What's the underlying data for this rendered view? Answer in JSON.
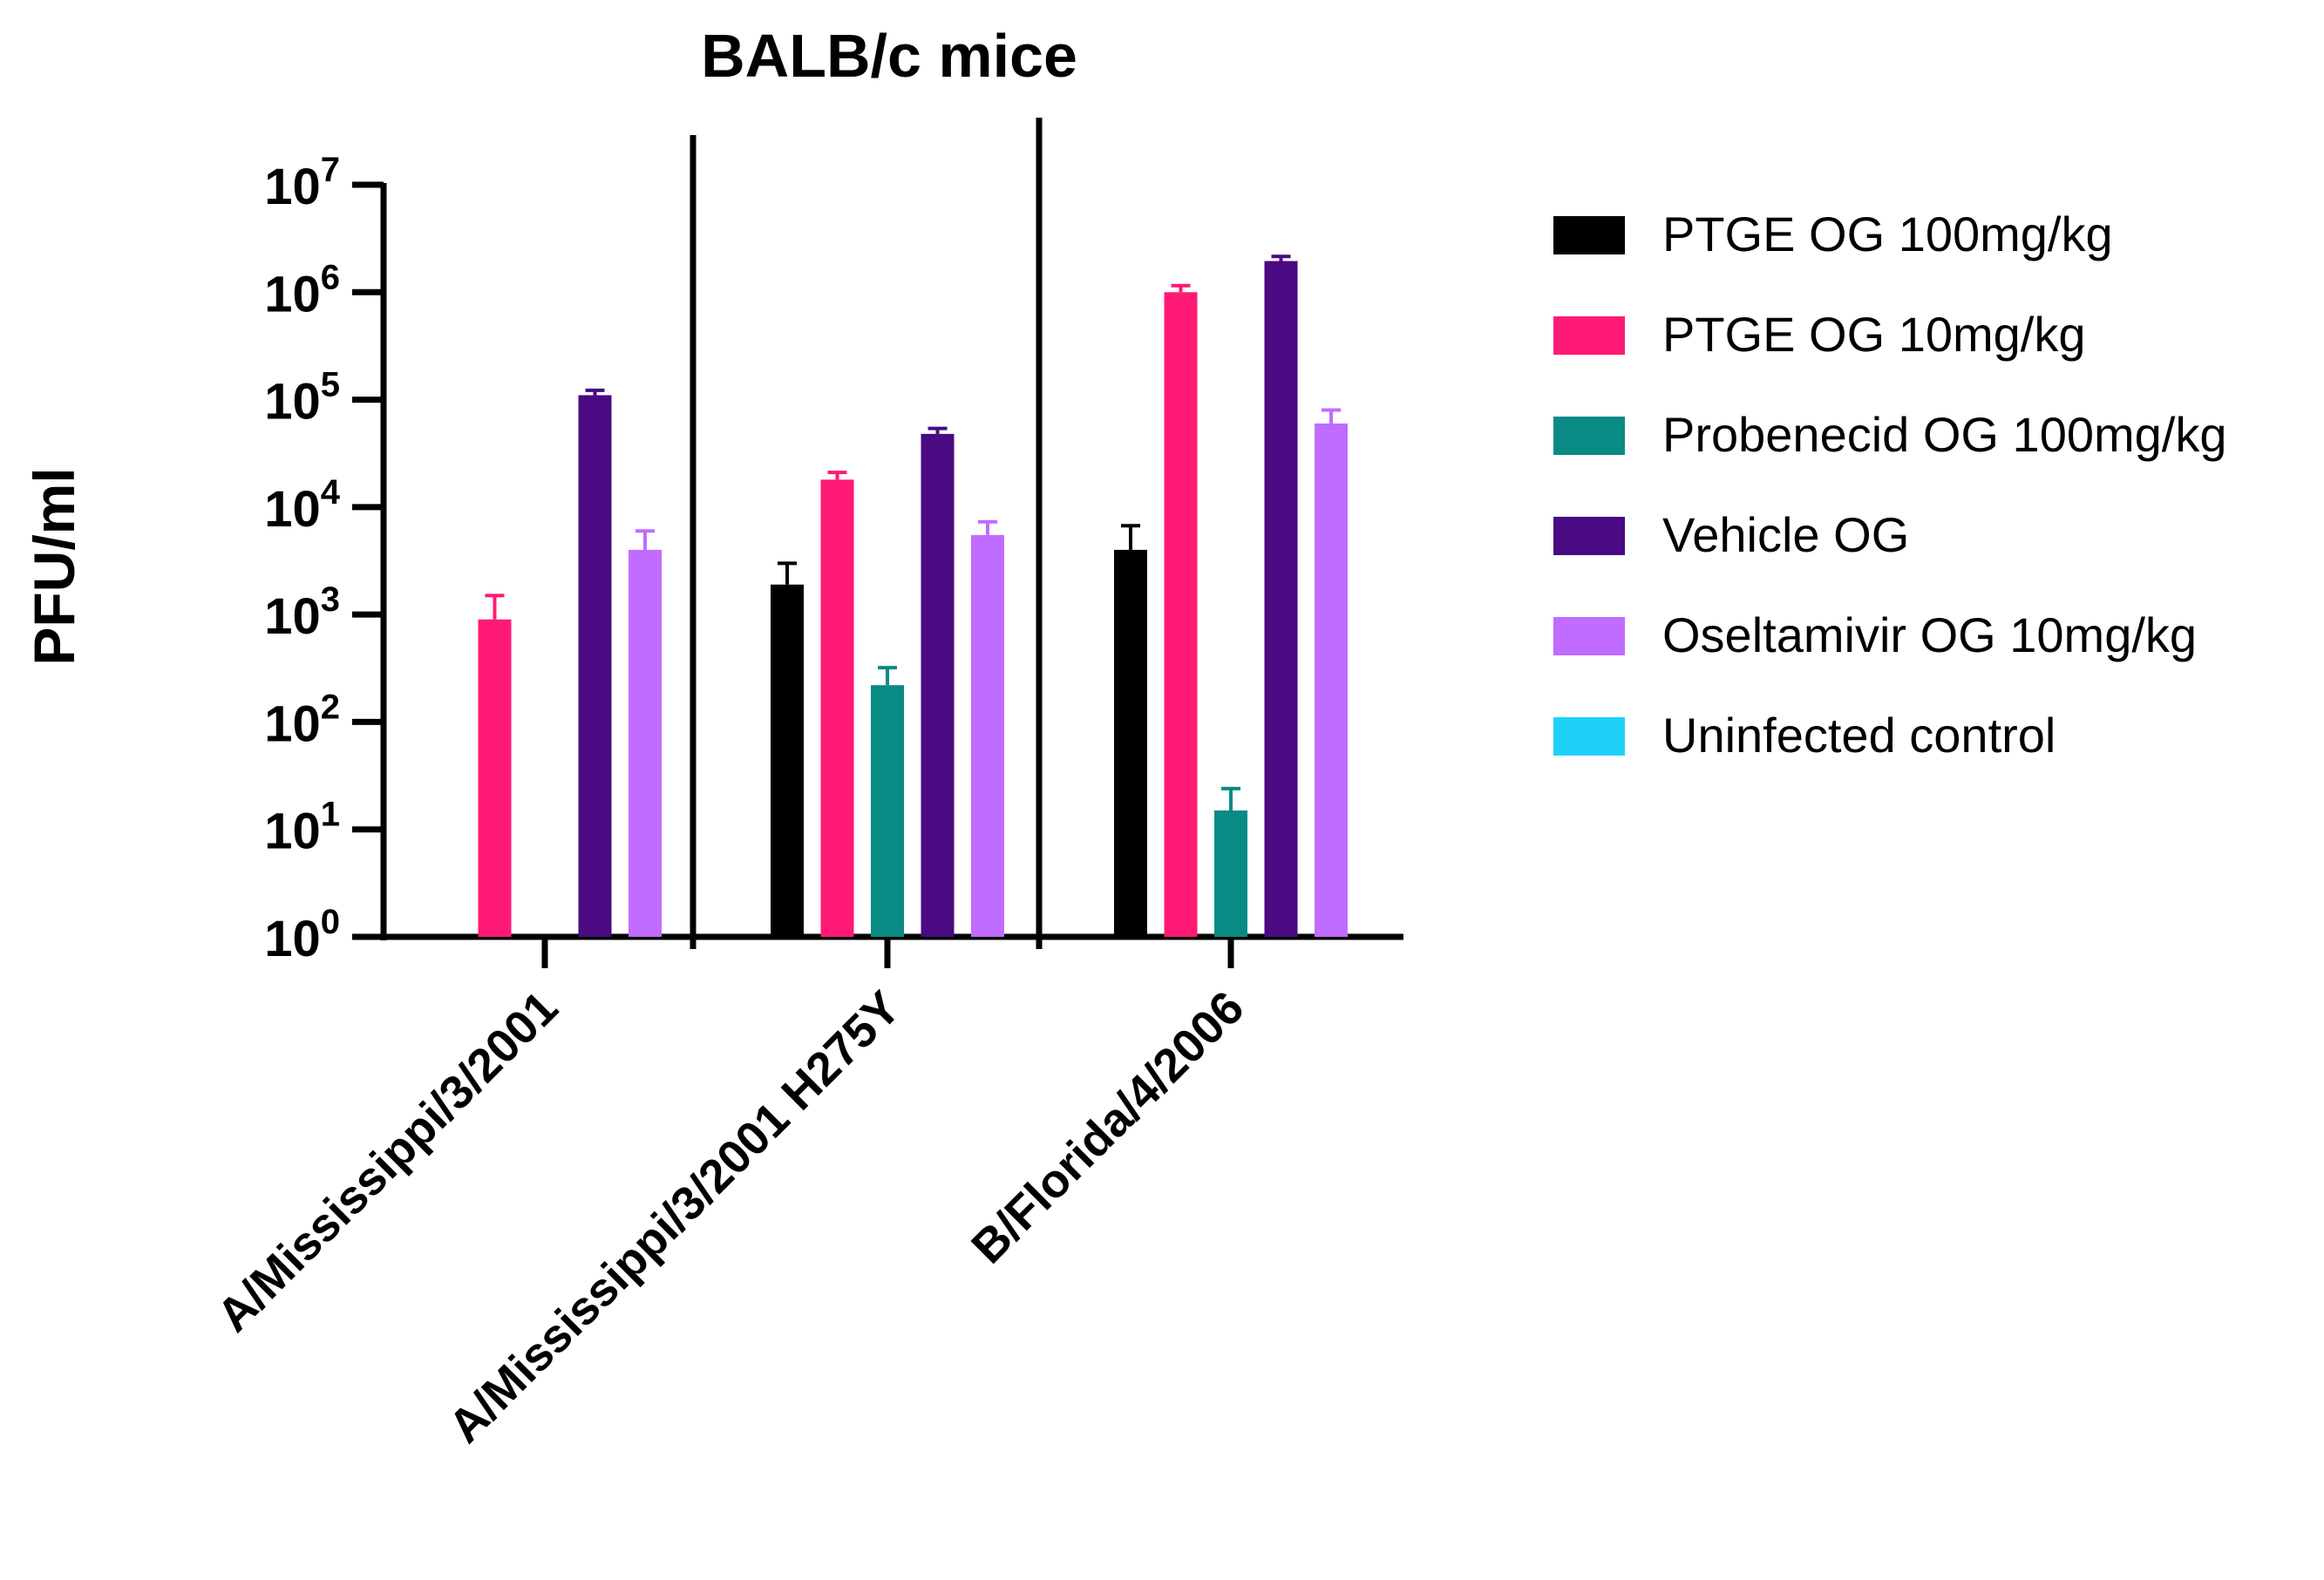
{
  "chart_data": {
    "type": "bar",
    "title": "BALB/c mice",
    "ylabel": "PFU/ml",
    "xlabel": "",
    "yscale": "log10",
    "ylim": [
      1,
      10000000
    ],
    "ytick_exponents": [
      "0",
      "1",
      "2",
      "3",
      "4",
      "5",
      "6",
      "7"
    ],
    "ytick_base": "10",
    "categories": [
      "A/Mississippi/3/2001",
      "A/Mississippi/3/2001 H275Y",
      "B/Florida/4/2006"
    ],
    "legend_position": "right",
    "series": [
      {
        "name": "PTGE OG 100mg/kg",
        "color": "#000000",
        "values": [
          null,
          1900,
          4000
        ],
        "errors": [
          null,
          3000,
          6700
        ]
      },
      {
        "name": "PTGE OG 10mg/kg",
        "color": "#ff1a75",
        "values": [
          900,
          18000,
          1000000
        ],
        "errors": [
          1500,
          21000,
          1150000
        ]
      },
      {
        "name": "Probenecid OG 100mg/kg",
        "color": "#0a8a85",
        "values": [
          null,
          220,
          15
        ],
        "errors": [
          null,
          320,
          24
        ]
      },
      {
        "name": "Vehicle OG",
        "color": "#4a0a82",
        "values": [
          110000,
          48000,
          1950000
        ],
        "errors": [
          122000,
          54000,
          2150000
        ]
      },
      {
        "name": "Oseltamivir OG 10mg/kg",
        "color": "#bf6cff",
        "values": [
          4000,
          5500,
          60000
        ],
        "errors": [
          6000,
          7300,
          80000
        ]
      },
      {
        "name": "Uninfected control",
        "color": "#1ed0f7",
        "values": [
          null,
          null,
          null
        ],
        "errors": [
          null,
          null,
          null
        ]
      }
    ]
  }
}
